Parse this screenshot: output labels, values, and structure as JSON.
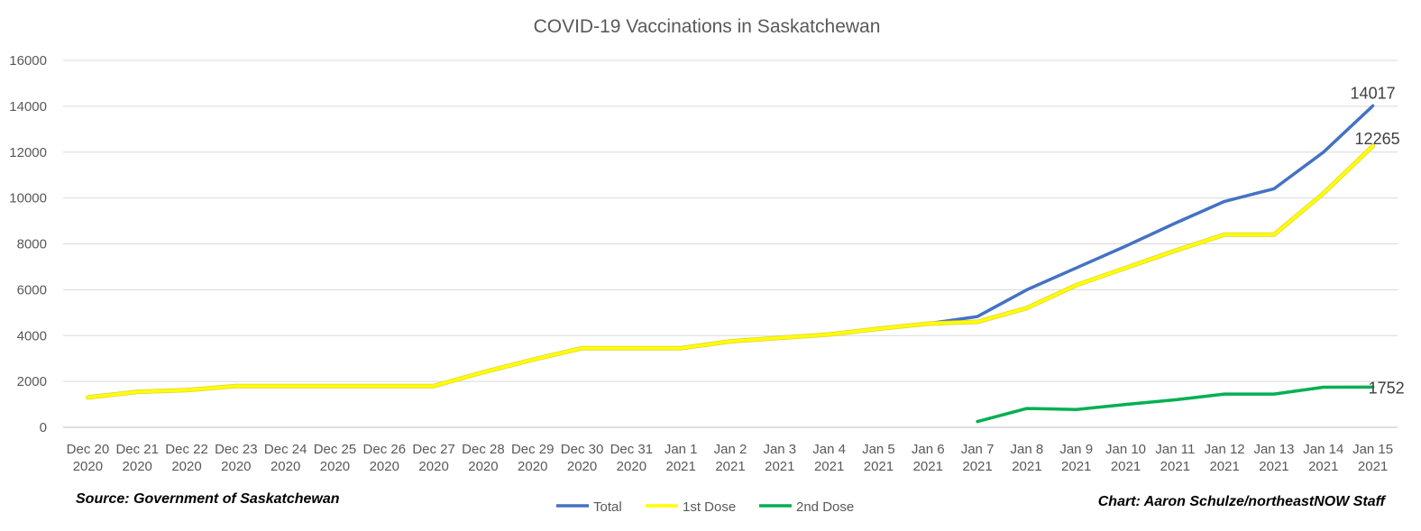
{
  "source_label": "Source: Government of Saskatchewan",
  "credit_label": "Chart: Aaron Schulze/northeastNOW Staff",
  "chart_data": {
    "type": "line",
    "title": "COVID-19 Vaccinations in Saskatchewan",
    "xlabel": "",
    "ylabel": "",
    "ylim": [
      0,
      16000
    ],
    "yticks": [
      0,
      2000,
      4000,
      6000,
      8000,
      10000,
      12000,
      14000,
      16000
    ],
    "grid": true,
    "legend": "bottom",
    "categories": [
      [
        "Dec 20",
        "2020"
      ],
      [
        "Dec 21",
        "2020"
      ],
      [
        "Dec 22",
        "2020"
      ],
      [
        "Dec 23",
        "2020"
      ],
      [
        "Dec 24",
        "2020"
      ],
      [
        "Dec 25",
        "2020"
      ],
      [
        "Dec 26",
        "2020"
      ],
      [
        "Dec 27",
        "2020"
      ],
      [
        "Dec 28",
        "2020"
      ],
      [
        "Dec 29",
        "2020"
      ],
      [
        "Dec 30",
        "2020"
      ],
      [
        "Dec 31",
        "2020"
      ],
      [
        "Jan 1",
        "2021"
      ],
      [
        "Jan 2",
        "2021"
      ],
      [
        "Jan 3",
        "2021"
      ],
      [
        "Jan 4",
        "2021"
      ],
      [
        "Jan 5",
        "2021"
      ],
      [
        "Jan 6",
        "2021"
      ],
      [
        "Jan 7",
        "2021"
      ],
      [
        "Jan 8",
        "2021"
      ],
      [
        "Jan 9",
        "2021"
      ],
      [
        "Jan 10",
        "2021"
      ],
      [
        "Jan 11",
        "2021"
      ],
      [
        "Jan 12",
        "2021"
      ],
      [
        "Jan 13",
        "2021"
      ],
      [
        "Jan 14",
        "2021"
      ],
      [
        "Jan 15",
        "2021"
      ]
    ],
    "series": [
      {
        "name": "Total",
        "color": "#4472C4",
        "values": [
          1300,
          1550,
          1620,
          1800,
          1800,
          1800,
          1800,
          1800,
          2400,
          2950,
          3450,
          3450,
          3450,
          3750,
          3900,
          4050,
          4300,
          4520,
          4830,
          6000,
          6950,
          7900,
          8900,
          9850,
          10400,
          12000,
          14017
        ],
        "end_label": "14017"
      },
      {
        "name": "1st Dose",
        "color": "#FFFF00",
        "values": [
          1300,
          1550,
          1620,
          1800,
          1800,
          1800,
          1800,
          1800,
          2400,
          2950,
          3450,
          3450,
          3450,
          3750,
          3900,
          4050,
          4300,
          4520,
          4600,
          5200,
          6200,
          6950,
          7700,
          8400,
          8400,
          10200,
          12265
        ],
        "end_label": "12265"
      },
      {
        "name": "2nd Dose",
        "color": "#00B050",
        "values": [
          null,
          null,
          null,
          null,
          null,
          null,
          null,
          null,
          null,
          null,
          null,
          null,
          null,
          null,
          null,
          null,
          null,
          null,
          250,
          820,
          780,
          1000,
          1200,
          1450,
          1450,
          1750,
          1752
        ],
        "end_label": "1752"
      }
    ]
  }
}
